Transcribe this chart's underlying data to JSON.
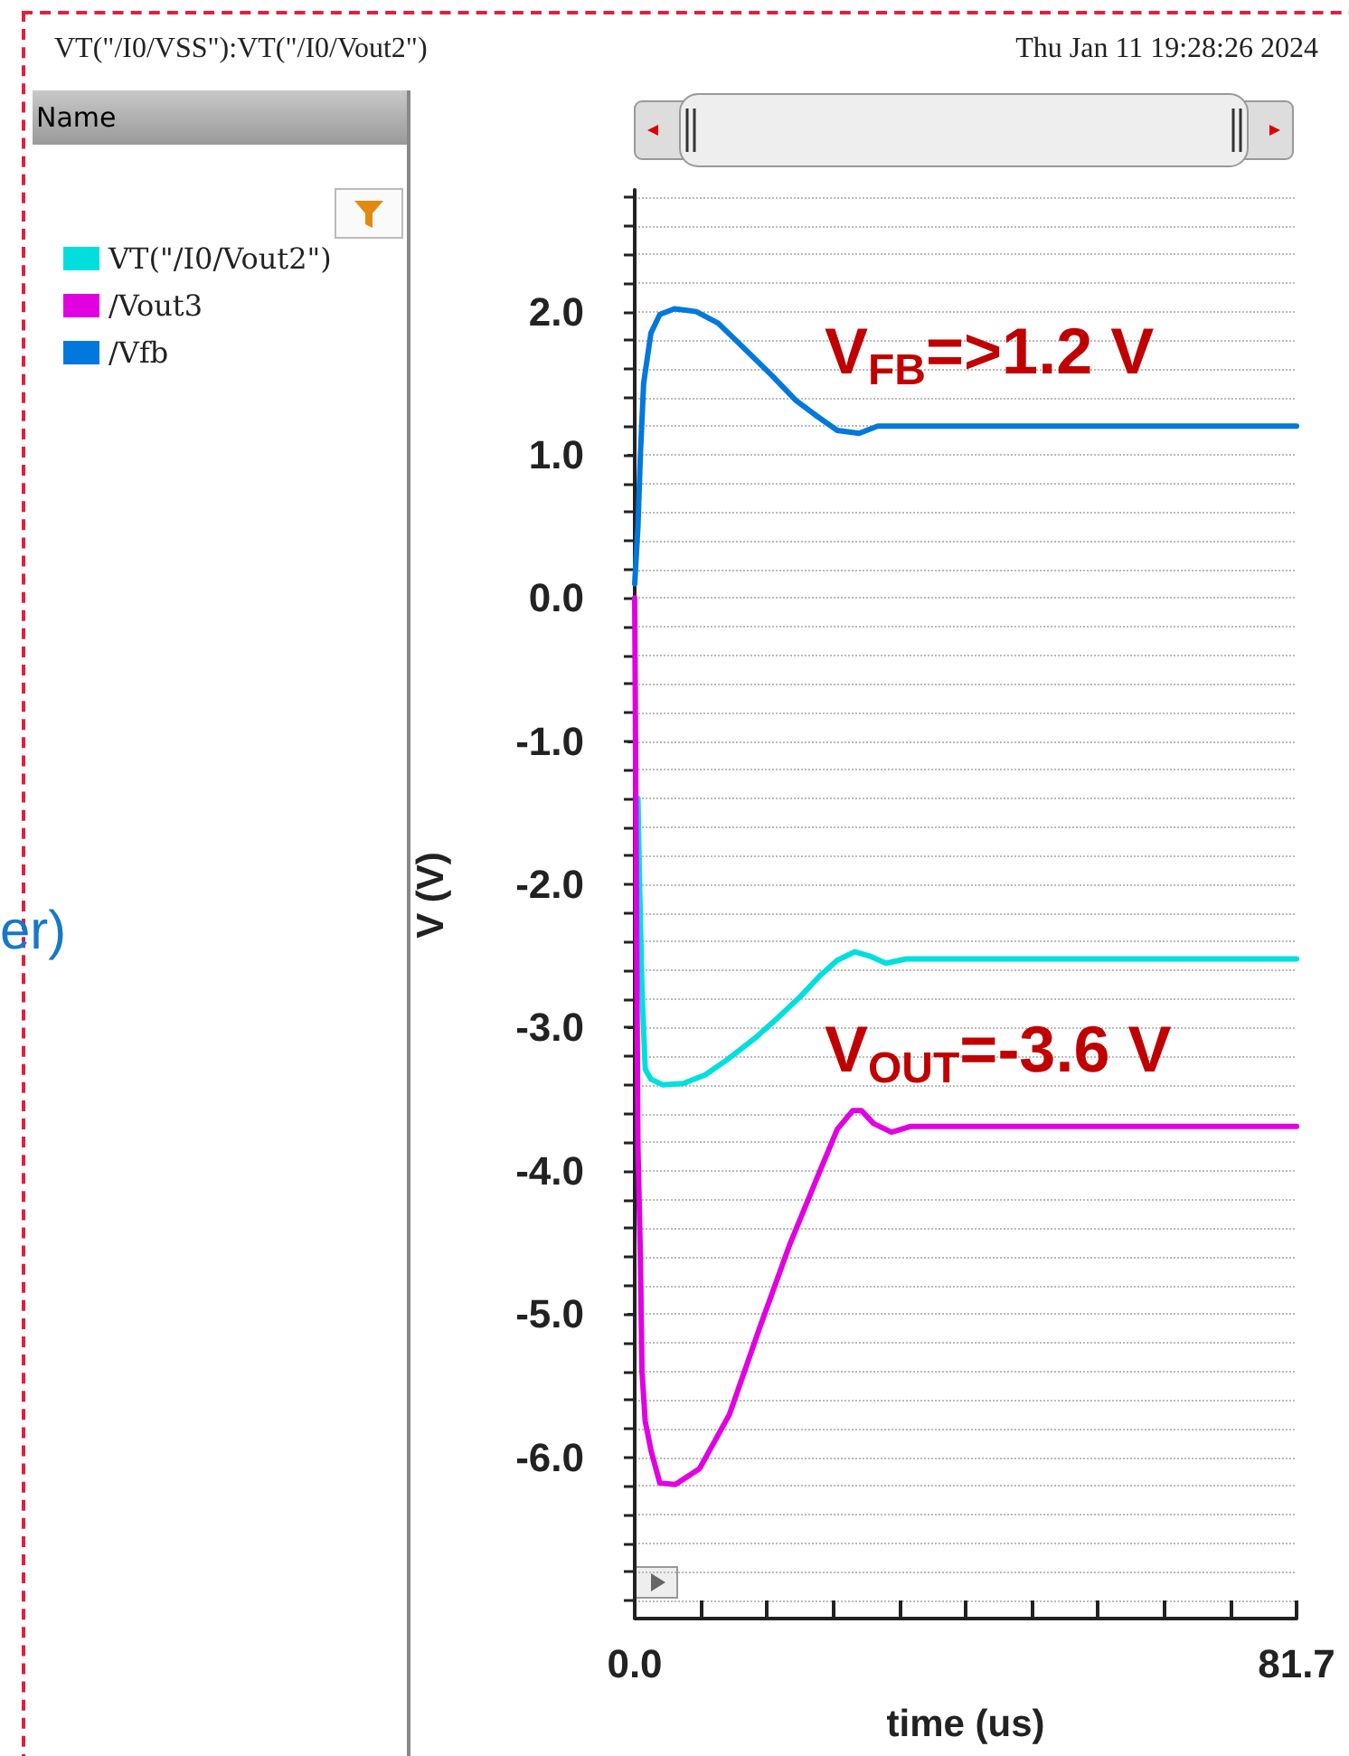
{
  "chart_data": {
    "type": "line",
    "title": "VT(\"/I0/VSS\"):VT(\"/I0/Vout2\")",
    "subtitle": "Thu Jan 11 19:28:26 2024",
    "legend_title": "Name",
    "xlabel": "time (us)",
    "ylabel": "V (V)",
    "xlim": [
      0,
      81.7
    ],
    "xticks": [
      {
        "value": 0,
        "label": "0.0"
      },
      {
        "value": 8.17,
        "label": null
      },
      {
        "value": 16.34,
        "label": null
      },
      {
        "value": 24.51,
        "label": null
      },
      {
        "value": 32.68,
        "label": null
      },
      {
        "value": 40.85,
        "label": null
      },
      {
        "value": 49.02,
        "label": null
      },
      {
        "value": 57.19,
        "label": null
      },
      {
        "value": 65.36,
        "label": null
      },
      {
        "value": 73.53,
        "label": null
      },
      {
        "value": 81.7,
        "label": "81.7"
      }
    ],
    "ylim": [
      -7.0,
      2.85
    ],
    "yticks": [
      {
        "value": -7.0,
        "label": null
      },
      {
        "value": -6.8,
        "label": null
      },
      {
        "value": -6.6,
        "label": null
      },
      {
        "value": -6.4,
        "label": null
      },
      {
        "value": -6.2,
        "label": null
      },
      {
        "value": -6.0,
        "label": "-6.0"
      },
      {
        "value": -5.8,
        "label": null
      },
      {
        "value": -5.6,
        "label": null
      },
      {
        "value": -5.4,
        "label": null
      },
      {
        "value": -5.2,
        "label": null
      },
      {
        "value": -5.0,
        "label": "-5.0"
      },
      {
        "value": -4.8,
        "label": null
      },
      {
        "value": -4.6,
        "label": null
      },
      {
        "value": -4.4,
        "label": null
      },
      {
        "value": -4.2,
        "label": null
      },
      {
        "value": -4.0,
        "label": "-4.0"
      },
      {
        "value": -3.8,
        "label": null
      },
      {
        "value": -3.6,
        "label": null
      },
      {
        "value": -3.4,
        "label": null
      },
      {
        "value": -3.2,
        "label": null
      },
      {
        "value": -3.0,
        "label": "-3.0"
      },
      {
        "value": -2.8,
        "label": null
      },
      {
        "value": -2.6,
        "label": null
      },
      {
        "value": -2.4,
        "label": null
      },
      {
        "value": -2.2,
        "label": null
      },
      {
        "value": -2.0,
        "label": "-2.0"
      },
      {
        "value": -1.8,
        "label": null
      },
      {
        "value": -1.6,
        "label": null
      },
      {
        "value": -1.4,
        "label": null
      },
      {
        "value": -1.2,
        "label": null
      },
      {
        "value": -1.0,
        "label": "-1.0"
      },
      {
        "value": -0.8,
        "label": null
      },
      {
        "value": -0.6,
        "label": null
      },
      {
        "value": -0.4,
        "label": null
      },
      {
        "value": -0.2,
        "label": null
      },
      {
        "value": 0,
        "label": "0.0"
      },
      {
        "value": 0.2,
        "label": null
      },
      {
        "value": 0.4,
        "label": null
      },
      {
        "value": 0.6,
        "label": null
      },
      {
        "value": 0.8,
        "label": null
      },
      {
        "value": 1.0,
        "label": "1.0"
      },
      {
        "value": 1.2,
        "label": null
      },
      {
        "value": 1.4,
        "label": null
      },
      {
        "value": 1.6,
        "label": null
      },
      {
        "value": 1.8,
        "label": null
      },
      {
        "value": 2.0,
        "label": "2.0"
      },
      {
        "value": 2.2,
        "label": null
      },
      {
        "value": 2.4,
        "label": null
      },
      {
        "value": 2.6,
        "label": null
      },
      {
        "value": 2.8,
        "label": null
      }
    ],
    "grid": "y",
    "legend": "left",
    "marker": "none",
    "line_style": "solid",
    "series": [
      {
        "name": "VT(\"/I0/Vout2\")",
        "color": "#00dede",
        "x": [
          0.4,
          0.6,
          0.9,
          1.3,
          2.0,
          3.5,
          6.0,
          8.7,
          11.5,
          14.7,
          17.5,
          20.5,
          23.0,
          25.0,
          27.2,
          29.0,
          31.0,
          33.5,
          40.0,
          50.0,
          60.0,
          70.0,
          81.7
        ],
        "values": [
          -1.4,
          -2.0,
          -2.74,
          -3.29,
          -3.36,
          -3.4,
          -3.39,
          -3.33,
          -3.22,
          -3.08,
          -2.94,
          -2.78,
          -2.63,
          -2.53,
          -2.47,
          -2.5,
          -2.55,
          -2.52,
          -2.52,
          -2.52,
          -2.52,
          -2.52,
          -2.52
        ]
      },
      {
        "name": "/Vout3",
        "color": "#e000e0",
        "x": [
          0,
          0.2,
          0.4,
          0.7,
          0.9,
          1.3,
          2.0,
          3.1,
          5.0,
          8.0,
          11.7,
          15.4,
          19.1,
          22.8,
          25.0,
          26.9,
          28.0,
          29.5,
          31.7,
          34.0,
          40.0,
          50.0,
          60.0,
          70.0,
          81.7
        ],
        "values": [
          0.0,
          -2.0,
          -3.84,
          -4.6,
          -5.4,
          -5.75,
          -5.95,
          -6.18,
          -6.19,
          -6.08,
          -5.7,
          -5.1,
          -4.52,
          -4.01,
          -3.71,
          -3.58,
          -3.58,
          -3.67,
          -3.73,
          -3.69,
          -3.69,
          -3.69,
          -3.69,
          -3.69,
          -3.69
        ]
      },
      {
        "name": "/Vfb",
        "color": "#0078dc",
        "x": [
          0,
          0.4,
          0.7,
          1.1,
          2.0,
          3.1,
          4.9,
          7.6,
          10.3,
          14.3,
          17.0,
          19.9,
          22.5,
          25.0,
          27.7,
          30.0,
          33.0,
          40.0,
          50.0,
          60.0,
          70.0,
          81.7
        ],
        "values": [
          0.1,
          0.5,
          1.0,
          1.5,
          1.85,
          1.98,
          2.02,
          2.0,
          1.92,
          1.7,
          1.55,
          1.38,
          1.27,
          1.17,
          1.15,
          1.2,
          1.2,
          1.2,
          1.2,
          1.2,
          1.2,
          1.2
        ]
      }
    ],
    "annotations": [
      "V$_{FB}$=>1.2 V",
      "V$_{OUT}$=-3.6 V",
      "er)"
    ]
  }
}
